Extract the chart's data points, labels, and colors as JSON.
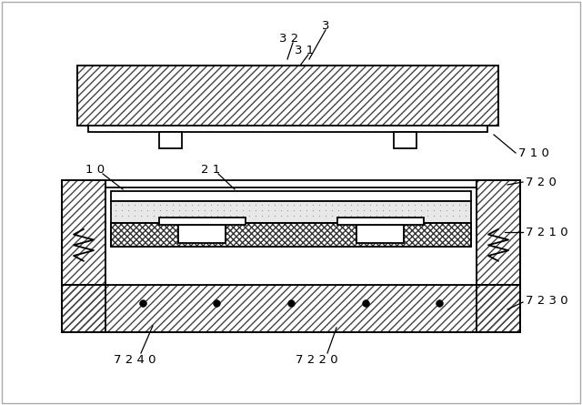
{
  "bg_color": "#ffffff",
  "line_color": "#000000",
  "fig_width": 6.4,
  "fig_height": 4.45,
  "dpi": 100
}
